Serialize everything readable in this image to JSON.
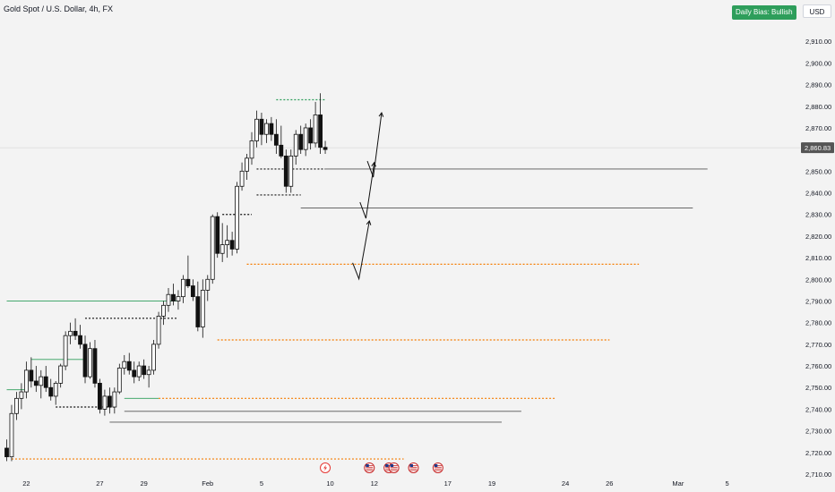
{
  "header": {
    "title": "Gold Spot / U.S. Dollar, 4h, FX",
    "currency": "USD",
    "bias_badge": "Daily Bias: Bullish"
  },
  "colors": {
    "up": "#2e9e5b",
    "down": "#111111",
    "candle": "#111111",
    "orange_level": "#f57c00",
    "green_level": "#2e9e5b",
    "gray_level": "#555555",
    "price_tag": "#555555",
    "background": "#f3f3f3"
  },
  "chart_data": {
    "type": "candlestick",
    "symbol": "Gold Spot / U.S. Dollar",
    "interval": "4h",
    "ylim": [
      2710,
      2920
    ],
    "y_ticks": [
      2710,
      2720,
      2730,
      2740,
      2750,
      2760,
      2770,
      2780,
      2790,
      2800,
      2810,
      2820,
      2830,
      2840,
      2850,
      2860,
      2870,
      2880,
      2890,
      2900,
      2910
    ],
    "y_tick_labels": [
      "2,710.00",
      "2,720.00",
      "2,730.00",
      "2,740.00",
      "2,750.00",
      "2,760.00",
      "2,770.00",
      "2,780.00",
      "2,790.00",
      "2,800.00",
      "2,810.00",
      "2,820.00",
      "2,830.00",
      "2,840.00",
      "2,850.00",
      "2,860.00",
      "2,870.00",
      "2,880.00",
      "2,890.00",
      "2,900.00",
      "2,910.00"
    ],
    "x_labels": [
      "22",
      "27",
      "29",
      "Feb",
      "5",
      "10",
      "12",
      "17",
      "19",
      "24",
      "26",
      "Mar",
      "5"
    ],
    "x_label_bars": [
      4,
      19,
      28,
      41,
      52,
      66,
      75,
      90,
      99,
      114,
      123,
      137,
      147
    ],
    "last_price": 2860.83,
    "last_price_label": "2,860.83",
    "candles": [
      [
        2722,
        2726,
        2716,
        2718
      ],
      [
        2718,
        2742,
        2716,
        2738
      ],
      [
        2738,
        2748,
        2735,
        2745
      ],
      [
        2745,
        2752,
        2740,
        2748
      ],
      [
        2748,
        2762,
        2745,
        2758
      ],
      [
        2758,
        2764,
        2750,
        2753
      ],
      [
        2753,
        2760,
        2748,
        2751
      ],
      [
        2751,
        2758,
        2745,
        2755
      ],
      [
        2755,
        2760,
        2748,
        2750
      ],
      [
        2750,
        2754,
        2744,
        2746
      ],
      [
        2746,
        2753,
        2742,
        2752
      ],
      [
        2752,
        2761,
        2750,
        2760
      ],
      [
        2760,
        2776,
        2758,
        2774
      ],
      [
        2774,
        2780,
        2770,
        2776
      ],
      [
        2776,
        2782,
        2772,
        2774
      ],
      [
        2774,
        2779,
        2768,
        2770
      ],
      [
        2770,
        2774,
        2752,
        2755
      ],
      [
        2755,
        2771,
        2754,
        2768
      ],
      [
        2768,
        2772,
        2750,
        2752
      ],
      [
        2752,
        2754,
        2738,
        2740
      ],
      [
        2740,
        2749,
        2737,
        2746
      ],
      [
        2746,
        2750,
        2738,
        2741
      ],
      [
        2741,
        2750,
        2738,
        2748
      ],
      [
        2748,
        2761,
        2747,
        2759
      ],
      [
        2759,
        2765,
        2756,
        2762
      ],
      [
        2762,
        2766,
        2756,
        2758
      ],
      [
        2758,
        2762,
        2752,
        2755
      ],
      [
        2755,
        2762,
        2753,
        2760
      ],
      [
        2760,
        2763,
        2754,
        2756
      ],
      [
        2756,
        2760,
        2750,
        2758
      ],
      [
        2758,
        2772,
        2756,
        2770
      ],
      [
        2770,
        2785,
        2768,
        2783
      ],
      [
        2783,
        2790,
        2779,
        2788
      ],
      [
        2788,
        2796,
        2785,
        2793
      ],
      [
        2793,
        2798,
        2788,
        2790
      ],
      [
        2790,
        2795,
        2786,
        2792
      ],
      [
        2792,
        2802,
        2789,
        2800
      ],
      [
        2800,
        2811,
        2796,
        2797
      ],
      [
        2797,
        2800,
        2790,
        2792
      ],
      [
        2792,
        2799,
        2776,
        2778
      ],
      [
        2778,
        2800,
        2773,
        2795
      ],
      [
        2795,
        2802,
        2790,
        2800
      ],
      [
        2800,
        2830,
        2798,
        2829
      ],
      [
        2829,
        2831,
        2810,
        2812
      ],
      [
        2812,
        2826,
        2808,
        2816
      ],
      [
        2816,
        2825,
        2810,
        2818
      ],
      [
        2818,
        2822,
        2811,
        2814
      ],
      [
        2814,
        2845,
        2812,
        2843
      ],
      [
        2843,
        2854,
        2841,
        2850
      ],
      [
        2850,
        2858,
        2846,
        2856
      ],
      [
        2856,
        2868,
        2853,
        2864
      ],
      [
        2864,
        2878,
        2861,
        2874
      ],
      [
        2874,
        2877,
        2862,
        2867
      ],
      [
        2867,
        2874,
        2863,
        2872
      ],
      [
        2872,
        2875,
        2864,
        2867
      ],
      [
        2867,
        2874,
        2858,
        2862
      ],
      [
        2862,
        2871,
        2856,
        2857
      ],
      [
        2857,
        2860,
        2840,
        2843
      ],
      [
        2843,
        2860,
        2840,
        2857
      ],
      [
        2857,
        2869,
        2853,
        2867
      ],
      [
        2867,
        2871,
        2858,
        2860
      ],
      [
        2860,
        2872,
        2857,
        2870
      ],
      [
        2870,
        2874,
        2860,
        2863
      ],
      [
        2863,
        2882,
        2861,
        2876
      ],
      [
        2876,
        2886,
        2858,
        2861
      ],
      [
        2861,
        2864,
        2858,
        2860
      ]
    ],
    "levels": [
      {
        "price": 2851,
        "from_bar": 65,
        "to_bar": 143,
        "style": "solid",
        "color": "#555555"
      },
      {
        "price": 2833,
        "from_bar": 60,
        "to_bar": 140,
        "style": "solid",
        "color": "#555555"
      },
      {
        "price": 2807,
        "from_bar": 49,
        "to_bar": 129,
        "style": "dotted",
        "color": "#f57c00"
      },
      {
        "price": 2772,
        "from_bar": 43,
        "to_bar": 123,
        "style": "dotted",
        "color": "#f57c00"
      },
      {
        "price": 2745,
        "from_bar": 31,
        "to_bar": 112,
        "style": "dotted",
        "color": "#f57c00"
      },
      {
        "price": 2717,
        "from_bar": 1,
        "to_bar": 81,
        "style": "dotted",
        "color": "#f57c00"
      },
      {
        "price": 2739,
        "from_bar": 24,
        "to_bar": 105,
        "style": "solid",
        "color": "#555555"
      },
      {
        "price": 2734,
        "from_bar": 21,
        "to_bar": 101,
        "style": "solid",
        "color": "#555555"
      },
      {
        "price": 2790,
        "from_bar": 0,
        "to_bar": 35,
        "style": "solid",
        "color": "#2e9e5b"
      },
      {
        "price": 2763,
        "from_bar": 5,
        "to_bar": 16,
        "style": "solid",
        "color": "#2e9e5b"
      },
      {
        "price": 2749,
        "from_bar": 0,
        "to_bar": 4,
        "style": "solid",
        "color": "#2e9e5b"
      },
      {
        "price": 2745,
        "from_bar": 24,
        "to_bar": 31,
        "style": "solid",
        "color": "#2e9e5b"
      },
      {
        "price": 2883,
        "from_bar": 55,
        "to_bar": 65,
        "style": "dotted",
        "color": "#2e9e5b"
      },
      {
        "price": 2851,
        "from_bar": 51,
        "to_bar": 65,
        "style": "dotted",
        "color": "#111111"
      },
      {
        "price": 2839,
        "from_bar": 51,
        "to_bar": 60,
        "style": "dotted",
        "color": "#111111"
      },
      {
        "price": 2830,
        "from_bar": 44,
        "to_bar": 50,
        "style": "dotted",
        "color": "#111111"
      },
      {
        "price": 2741,
        "from_bar": 10,
        "to_bar": 22,
        "style": "dotted",
        "color": "#111111"
      },
      {
        "price": 2782,
        "from_bar": 16,
        "to_bar": 35,
        "style": "dotted",
        "color": "#111111"
      }
    ],
    "arrows": [
      {
        "from": [
          74.5,
          2853
        ],
        "to": [
          76.5,
          2877
        ]
      },
      {
        "from": [
          73,
          2834
        ],
        "to": [
          75,
          2854
        ]
      },
      {
        "from": [
          71.5,
          2806
        ],
        "to": [
          74,
          2827
        ]
      }
    ],
    "event_markers": [
      {
        "bar": 65,
        "icon": "lightning-icon"
      },
      {
        "bar": 74,
        "icon": "us-flag-icon"
      },
      {
        "bar": 78,
        "icon": "us-flag-icon"
      },
      {
        "bar": 79,
        "icon": "us-flag-icon"
      },
      {
        "bar": 83,
        "icon": "us-flag-icon"
      },
      {
        "bar": 88,
        "icon": "us-flag-icon"
      }
    ]
  }
}
